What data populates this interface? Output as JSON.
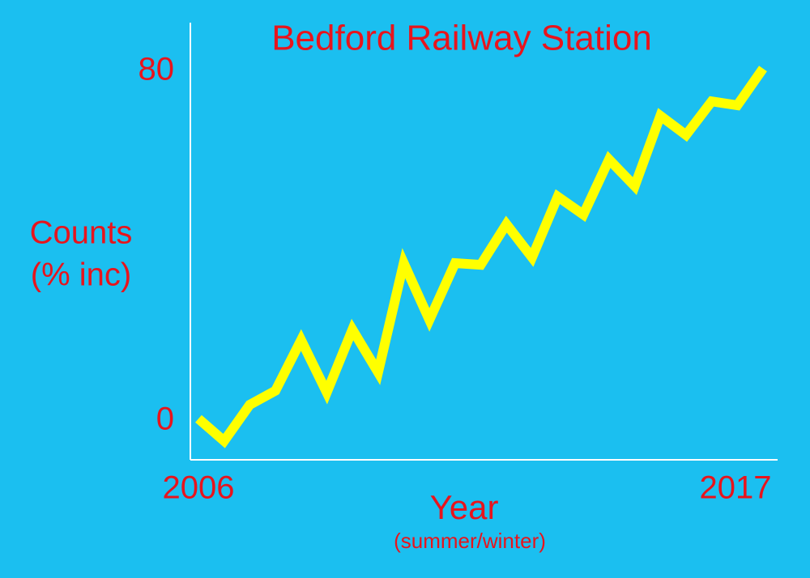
{
  "chart_data": {
    "type": "line",
    "title": "Bedford Railway Station",
    "ylabel": [
      "Counts",
      "(% inc)"
    ],
    "xlabel": "Year",
    "xlabel_note": "(summer/winter)",
    "categories": [
      "2006",
      null,
      null,
      null,
      null,
      null,
      null,
      null,
      null,
      null,
      null,
      null,
      null,
      null,
      null,
      null,
      null,
      null,
      null,
      null,
      null,
      null,
      "2017"
    ],
    "series": [
      {
        "name": "Counts",
        "color": "#ffff00",
        "values": [
          0.5,
          -4.6,
          3.7,
          6.9,
          18.5,
          6.5,
          20.9,
          11.1,
          36.1,
          23.1,
          36.1,
          35.7,
          45,
          37.4,
          51.3,
          47.2,
          59.8,
          53.7,
          69.8,
          65.4,
          73.1,
          72.2,
          80.6
        ]
      }
    ],
    "ylim": [
      -8.9,
      91.1
    ],
    "yticks": [
      0,
      80
    ],
    "grid": false
  }
}
